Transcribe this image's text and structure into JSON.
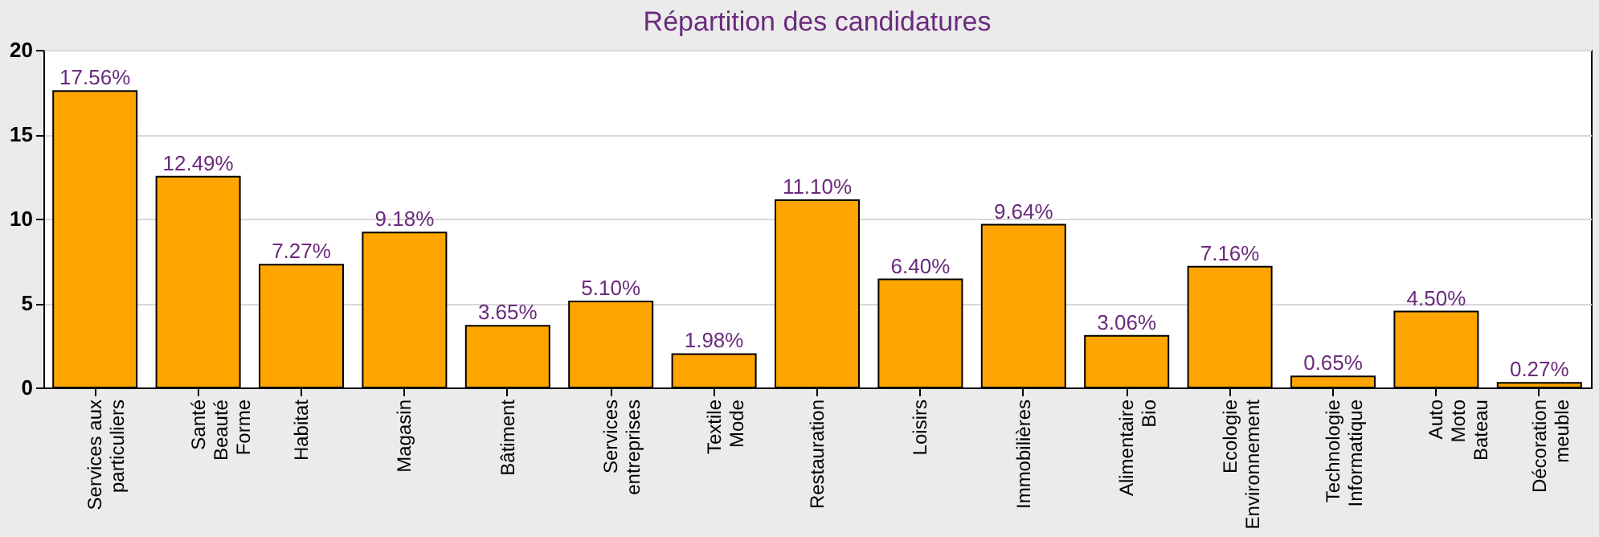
{
  "chart_data": {
    "type": "bar",
    "title": "Répartition des candidatures",
    "categories": [
      "Services aux\nparticuliers",
      "Santé\nBeauté\nForme",
      "Habitat",
      "Magasin",
      "Bâtiment",
      "Services\nentreprises",
      "Textile\nMode",
      "Restauration",
      "Loisirs",
      "Immobilières",
      "Alimentaire\nBio",
      "Ecologie\nEnvironnement",
      "Technologie\nInformatique",
      "Auto\nMoto\nBateau",
      "Décoration\nmeuble"
    ],
    "values": [
      17.56,
      12.49,
      7.27,
      9.18,
      3.65,
      5.1,
      1.98,
      11.1,
      6.4,
      9.64,
      3.06,
      7.16,
      0.65,
      4.5,
      0.27
    ],
    "value_labels": [
      "17.56%",
      "12.49%",
      "7.27%",
      "9.18%",
      "3.65%",
      "5.10%",
      "1.98%",
      "11.10%",
      "6.40%",
      "9.64%",
      "3.06%",
      "7.16%",
      "0.65%",
      "4.50%",
      "0.27%"
    ],
    "color": "#ffa500",
    "ylim": [
      0,
      20
    ],
    "yticks": [
      0,
      5,
      10,
      15,
      20
    ],
    "grid": "y"
  }
}
